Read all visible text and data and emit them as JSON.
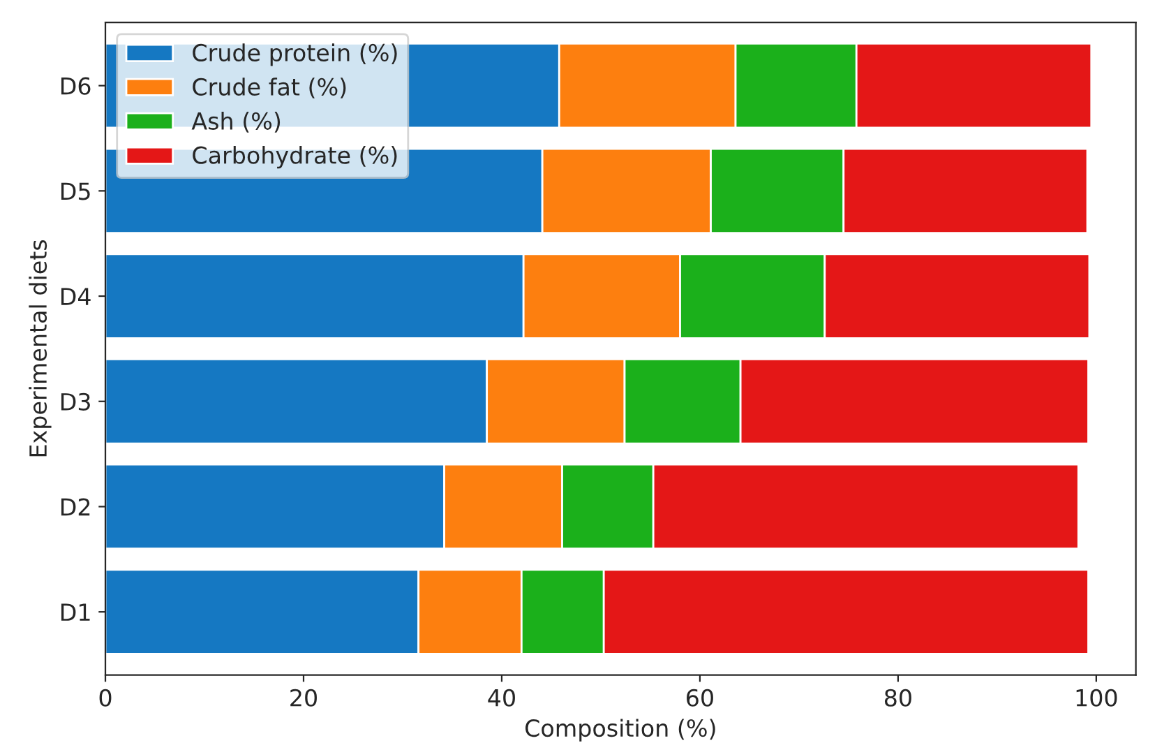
{
  "chart_data": {
    "type": "bar",
    "orientation": "horizontal",
    "stacked": true,
    "xlabel": "Composition (%)",
    "ylabel": "Experimental diets",
    "categories": [
      "D6",
      "D5",
      "D4",
      "D3",
      "D2",
      "D1"
    ],
    "series": [
      {
        "name": "Crude protein (%)",
        "color": "#1578c2",
        "values": [
          45.8,
          44.1,
          42.2,
          38.5,
          34.2,
          31.6
        ]
      },
      {
        "name": "Crude fat (%)",
        "color": "#fd7f0f",
        "values": [
          17.8,
          17.0,
          15.8,
          13.9,
          11.9,
          10.4
        ]
      },
      {
        "name": "Ash (%)",
        "color": "#1bb01b",
        "values": [
          12.2,
          13.4,
          14.6,
          11.7,
          9.2,
          8.3
        ]
      },
      {
        "name": "Carbohydrate (%)",
        "color": "#e41717",
        "values": [
          23.7,
          24.6,
          26.7,
          35.1,
          42.9,
          48.9
        ]
      }
    ],
    "xlim": [
      0,
      104
    ],
    "xticks": [
      0,
      20,
      40,
      60,
      80,
      100
    ],
    "grid": false,
    "legend": "top left"
  }
}
